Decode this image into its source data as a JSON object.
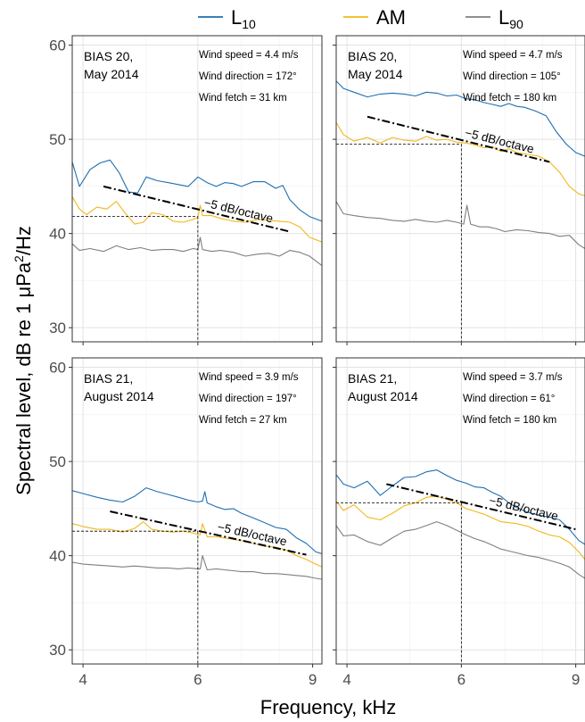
{
  "chart_data": {
    "type": "line",
    "ylabel_main": "Spectral level, dB re 1 μPa",
    "ylabel_sup": "2",
    "ylabel_tail": "/Hz",
    "xlabel": "Frequency, kHz",
    "x_scale": "log",
    "xlim": [
      3.85,
      9.3
    ],
    "ylim": [
      28.5,
      61
    ],
    "x_ticks": [
      4,
      6,
      9
    ],
    "y_ticks": [
      30,
      40,
      50,
      60
    ],
    "grid": true,
    "legend_position": "top",
    "legend": [
      {
        "key": "L10",
        "main": "L",
        "sub": "10",
        "color": "#1f6fb2"
      },
      {
        "key": "AM",
        "main": "AM",
        "sub": "",
        "color": "#f2b81a"
      },
      {
        "key": "L90",
        "main": "L",
        "sub": "90",
        "color": "#7f7f7f"
      }
    ],
    "slope_label": "−5 dB/octave",
    "panels": [
      {
        "id": "bias20-172",
        "label_line1": "BIAS 20,",
        "label_line2": "May 2014",
        "info": [
          "Wind speed = 4.4 m/s",
          "Wind direction = 172°",
          "Wind fetch = 31 km"
        ],
        "ref_freq": 6,
        "ref_level": 41.8,
        "slope_line": {
          "x": [
            4.3,
            8.3
          ],
          "y": [
            45.0,
            40.2
          ]
        },
        "series": {
          "L10": {
            "x": [
              3.85,
              3.95,
              4.1,
              4.25,
              4.4,
              4.55,
              4.7,
              4.85,
              5.0,
              5.2,
              5.4,
              5.6,
              5.8,
              6.0,
              6.2,
              6.4,
              6.6,
              6.8,
              7.0,
              7.3,
              7.6,
              7.9,
              8.1,
              8.3,
              8.6,
              8.9,
              9.3
            ],
            "y": [
              47.6,
              45.0,
              46.8,
              47.5,
              47.8,
              46.4,
              44.4,
              44.3,
              46.0,
              45.6,
              45.4,
              45.2,
              45.0,
              46.0,
              45.4,
              45.0,
              45.4,
              45.3,
              45.0,
              45.5,
              45.5,
              44.8,
              45.1,
              43.6,
              42.5,
              41.8,
              41.3
            ]
          },
          "AM": {
            "x": [
              3.85,
              3.95,
              4.05,
              4.2,
              4.35,
              4.5,
              4.65,
              4.8,
              4.95,
              5.1,
              5.3,
              5.5,
              5.7,
              5.9,
              6.0,
              6.05,
              6.1,
              6.3,
              6.5,
              6.8,
              7.1,
              7.4,
              7.7,
              8.0,
              8.3,
              8.6,
              8.9,
              9.3
            ],
            "y": [
              43.9,
              42.6,
              42.0,
              42.8,
              42.6,
              43.4,
              42.1,
              41.0,
              41.2,
              42.2,
              42.0,
              41.3,
              41.2,
              41.5,
              41.7,
              43.0,
              41.9,
              41.9,
              41.6,
              41.3,
              41.2,
              41.5,
              41.4,
              41.3,
              41.2,
              40.7,
              39.6,
              39.1
            ]
          },
          "L90": {
            "x": [
              3.85,
              3.95,
              4.1,
              4.3,
              4.5,
              4.7,
              4.9,
              5.1,
              5.3,
              5.5,
              5.7,
              5.9,
              6.0,
              6.05,
              6.1,
              6.3,
              6.5,
              6.8,
              7.1,
              7.4,
              7.7,
              8.0,
              8.3,
              8.6,
              8.9,
              9.3
            ],
            "y": [
              38.9,
              38.2,
              38.4,
              38.1,
              38.7,
              38.3,
              38.5,
              38.2,
              38.3,
              38.3,
              38.1,
              38.4,
              38.3,
              39.6,
              38.3,
              38.1,
              38.2,
              38.0,
              37.6,
              37.8,
              37.9,
              37.6,
              38.2,
              38.0,
              37.6,
              36.6
            ]
          }
        }
      },
      {
        "id": "bias20-105",
        "label_line1": "BIAS 20,",
        "label_line2": "May 2014",
        "info": [
          "Wind speed = 4.7 m/s",
          "Wind direction = 105°",
          "Wind fetch = 180 km"
        ],
        "ref_freq": 6,
        "ref_level": 49.5,
        "slope_line": {
          "x": [
            4.3,
            8.2
          ],
          "y": [
            52.4,
            47.6
          ]
        },
        "series": {
          "L10": {
            "x": [
              3.85,
              3.95,
              4.1,
              4.3,
              4.5,
              4.7,
              4.9,
              5.1,
              5.3,
              5.5,
              5.7,
              5.9,
              6.1,
              6.3,
              6.5,
              6.7,
              6.9,
              7.1,
              7.3,
              7.5,
              7.8,
              8.1,
              8.4,
              8.7,
              9.0,
              9.3
            ],
            "y": [
              56.2,
              55.4,
              55.0,
              54.5,
              54.8,
              54.9,
              54.8,
              54.6,
              55.0,
              54.9,
              54.6,
              54.7,
              54.3,
              54.2,
              53.9,
              53.7,
              53.5,
              53.8,
              53.5,
              53.4,
              53.0,
              52.5,
              50.8,
              49.5,
              48.6,
              48.2
            ]
          },
          "AM": {
            "x": [
              3.85,
              3.95,
              4.1,
              4.3,
              4.5,
              4.7,
              4.9,
              5.1,
              5.3,
              5.5,
              5.7,
              5.9,
              6.1,
              6.3,
              6.5,
              6.7,
              6.9,
              7.1,
              7.3,
              7.6,
              7.9,
              8.2,
              8.5,
              8.8,
              9.1,
              9.3
            ],
            "y": [
              51.8,
              50.5,
              49.8,
              50.2,
              49.6,
              50.2,
              49.9,
              49.8,
              50.3,
              49.9,
              50.0,
              49.7,
              49.6,
              49.4,
              49.1,
              49.2,
              48.7,
              49.0,
              48.6,
              48.4,
              48.2,
              47.6,
              46.5,
              45.0,
              44.2,
              44.0
            ]
          },
          "L90": {
            "x": [
              3.85,
              3.95,
              4.1,
              4.3,
              4.5,
              4.7,
              4.9,
              5.1,
              5.3,
              5.5,
              5.7,
              5.9,
              6.05,
              6.12,
              6.2,
              6.4,
              6.6,
              6.8,
              7.0,
              7.3,
              7.6,
              7.9,
              8.2,
              8.5,
              8.8,
              9.1,
              9.3
            ],
            "y": [
              43.4,
              42.1,
              41.9,
              41.7,
              41.6,
              41.4,
              41.3,
              41.5,
              41.3,
              41.2,
              41.4,
              41.2,
              41.0,
              43.0,
              41.0,
              40.7,
              40.7,
              40.5,
              40.2,
              40.4,
              40.3,
              40.1,
              40.0,
              39.7,
              39.8,
              38.8,
              38.4
            ]
          }
        }
      },
      {
        "id": "bias21-197",
        "label_line1": "BIAS 21,",
        "label_line2": "August 2014",
        "info": [
          "Wind speed = 3.9 m/s",
          "Wind direction = 197°",
          "Wind fetch = 27 km"
        ],
        "ref_freq": 6,
        "ref_level": 42.6,
        "slope_line": {
          "x": [
            4.4,
            8.8
          ],
          "y": [
            44.7,
            40.1
          ]
        },
        "series": {
          "L10": {
            "x": [
              3.85,
              4.0,
              4.2,
              4.4,
              4.6,
              4.8,
              5.0,
              5.2,
              5.4,
              5.6,
              5.8,
              6.0,
              6.1,
              6.15,
              6.2,
              6.4,
              6.6,
              6.8,
              7.0,
              7.3,
              7.6,
              7.9,
              8.2,
              8.5,
              8.8,
              9.1,
              9.3
            ],
            "y": [
              46.9,
              46.6,
              46.2,
              45.9,
              45.7,
              46.3,
              47.2,
              46.8,
              46.5,
              46.2,
              45.9,
              45.7,
              45.8,
              46.8,
              45.6,
              45.2,
              44.9,
              45.0,
              44.5,
              44.0,
              43.5,
              43.0,
              42.8,
              41.9,
              41.3,
              40.4,
              40.2
            ]
          },
          "AM": {
            "x": [
              3.85,
              4.0,
              4.2,
              4.4,
              4.6,
              4.8,
              4.95,
              5.1,
              5.3,
              5.5,
              5.7,
              5.9,
              6.05,
              6.1,
              6.2,
              6.4,
              6.7,
              7.0,
              7.3,
              7.6,
              7.9,
              8.2,
              8.5,
              8.8,
              9.1,
              9.3
            ],
            "y": [
              43.4,
              43.1,
              42.8,
              42.8,
              42.5,
              42.9,
              43.6,
              42.8,
              42.6,
              42.5,
              42.6,
              42.4,
              42.2,
              43.4,
              42.0,
              42.0,
              41.8,
              41.6,
              41.3,
              41.0,
              40.9,
              40.6,
              40.0,
              39.6,
              39.1,
              38.8
            ]
          },
          "L90": {
            "x": [
              3.85,
              4.0,
              4.2,
              4.4,
              4.6,
              4.8,
              5.0,
              5.2,
              5.4,
              5.6,
              5.8,
              6.0,
              6.05,
              6.1,
              6.2,
              6.4,
              6.6,
              6.8,
              7.0,
              7.3,
              7.6,
              7.9,
              8.2,
              8.5,
              8.8,
              9.1,
              9.3
            ],
            "y": [
              39.3,
              39.1,
              39.0,
              38.9,
              38.8,
              38.9,
              38.8,
              38.7,
              38.7,
              38.6,
              38.7,
              38.6,
              38.6,
              40.0,
              38.5,
              38.6,
              38.5,
              38.4,
              38.3,
              38.3,
              38.1,
              38.1,
              38.0,
              37.9,
              37.8,
              37.6,
              37.5
            ]
          }
        }
      },
      {
        "id": "bias21-61",
        "label_line1": "BIAS 21,",
        "label_line2": "August 2014",
        "info": [
          "Wind speed = 3.7 m/s",
          "Wind direction = 61°",
          "Wind fetch = 180 km"
        ],
        "ref_freq": 6,
        "ref_level": 45.6,
        "slope_line": {
          "x": [
            4.6,
            9.0
          ],
          "y": [
            47.6,
            42.8
          ]
        },
        "series": {
          "L10": {
            "x": [
              3.85,
              3.95,
              4.1,
              4.3,
              4.5,
              4.7,
              4.9,
              5.1,
              5.3,
              5.5,
              5.7,
              5.9,
              6.1,
              6.3,
              6.5,
              6.7,
              6.9,
              7.1,
              7.3,
              7.6,
              7.9,
              8.2,
              8.5,
              8.8,
              9.1,
              9.3
            ],
            "y": [
              48.6,
              47.6,
              47.2,
              47.9,
              46.4,
              47.4,
              48.3,
              48.4,
              48.9,
              49.1,
              48.5,
              48.0,
              47.7,
              47.3,
              47.2,
              46.7,
              46.3,
              45.6,
              45.1,
              44.6,
              44.3,
              44.1,
              43.8,
              42.8,
              41.6,
              41.2
            ]
          },
          "AM": {
            "x": [
              3.85,
              3.95,
              4.1,
              4.3,
              4.5,
              4.7,
              4.9,
              5.1,
              5.3,
              5.5,
              5.7,
              5.9,
              6.1,
              6.3,
              6.5,
              6.7,
              6.9,
              7.1,
              7.3,
              7.6,
              7.9,
              8.2,
              8.5,
              8.8,
              9.1,
              9.3
            ],
            "y": [
              45.8,
              44.8,
              45.4,
              44.1,
              43.8,
              44.5,
              45.3,
              45.6,
              46.2,
              46.3,
              46.0,
              45.6,
              45.0,
              44.7,
              44.4,
              44.0,
              43.6,
              43.5,
              43.4,
              43.1,
              42.6,
              42.2,
              42.0,
              41.4,
              40.4,
              39.6
            ]
          },
          "L90": {
            "x": [
              3.85,
              3.95,
              4.1,
              4.3,
              4.5,
              4.7,
              4.9,
              5.1,
              5.3,
              5.5,
              5.7,
              5.9,
              6.1,
              6.3,
              6.5,
              6.7,
              6.9,
              7.1,
              7.3,
              7.6,
              7.9,
              8.2,
              8.5,
              8.8,
              9.1,
              9.3
            ],
            "y": [
              43.2,
              42.1,
              42.2,
              41.5,
              41.1,
              41.9,
              42.6,
              42.8,
              43.2,
              43.6,
              43.2,
              42.7,
              42.2,
              41.8,
              41.5,
              41.1,
              40.7,
              40.5,
              40.3,
              40.0,
              39.8,
              39.5,
              39.2,
              38.8,
              38.0,
              37.6
            ]
          }
        }
      }
    ]
  }
}
